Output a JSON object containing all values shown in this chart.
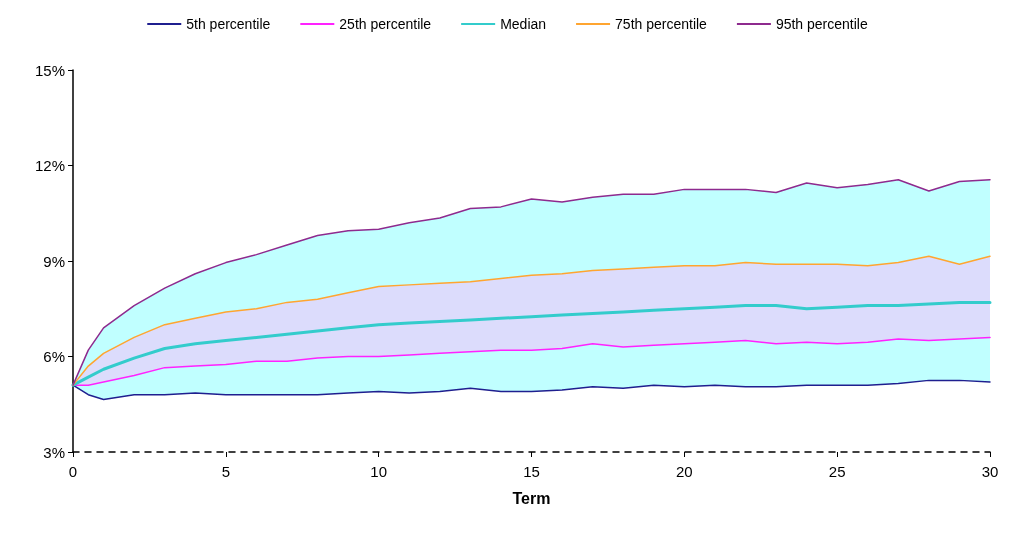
{
  "chart_data": {
    "type": "line",
    "xlabel": "Term",
    "x": [
      0,
      0.5,
      1,
      2,
      3,
      4,
      5,
      6,
      7,
      8,
      9,
      10,
      11,
      12,
      13,
      14,
      15,
      16,
      17,
      18,
      19,
      20,
      21,
      22,
      23,
      24,
      25,
      26,
      27,
      28,
      29,
      30
    ],
    "xlim": [
      0,
      30
    ],
    "xticks": [
      0,
      5,
      10,
      15,
      20,
      25,
      30
    ],
    "ylim": [
      3,
      15
    ],
    "yticks": [
      {
        "value": 3,
        "label": "3%"
      },
      {
        "value": 6,
        "label": "6%"
      },
      {
        "value": 9,
        "label": "9%"
      },
      {
        "value": 12,
        "label": "12%"
      },
      {
        "value": 15,
        "label": "15%"
      }
    ],
    "grid": false,
    "legend": "top",
    "marker": "none",
    "line_style": "solid",
    "series": [
      {
        "name": "5th percentile",
        "color": "#1f1f8f",
        "values": [
          5.1,
          4.8,
          4.65,
          4.8,
          4.8,
          4.85,
          4.8,
          4.8,
          4.8,
          4.8,
          4.85,
          4.9,
          4.85,
          4.9,
          5.0,
          4.9,
          4.9,
          4.95,
          5.05,
          5.0,
          5.1,
          5.05,
          5.1,
          5.05,
          5.05,
          5.1,
          5.1,
          5.1,
          5.15,
          5.25,
          5.25,
          5.2
        ],
        "lower": [
          5.1,
          4.8,
          4.65,
          4.8,
          4.8,
          4.85,
          4.8,
          4.8,
          4.8,
          4.8,
          4.85,
          4.9,
          4.85,
          4.9,
          5.0,
          4.9,
          4.9,
          4.95,
          5.05,
          5.0,
          5.1,
          5.05,
          5.1,
          5.05,
          5.05,
          5.1,
          5.1,
          5.1,
          5.15,
          5.25,
          5.25,
          5.2
        ],
        "upper": [
          5.1,
          6.2,
          6.9,
          7.6,
          8.15,
          8.6,
          8.95,
          9.2,
          9.5,
          9.8,
          9.95,
          10.0,
          10.2,
          10.35,
          10.65,
          10.7,
          10.95,
          10.85,
          11.0,
          11.1,
          11.1,
          11.25,
          11.25,
          11.25,
          11.15,
          11.45,
          11.3,
          11.4,
          11.55,
          11.2,
          11.5,
          11.55
        ]
      },
      {
        "name": "25th percentile",
        "color": "#ff22ff",
        "values": [
          5.1,
          5.1,
          5.2,
          5.4,
          5.65,
          5.7,
          5.75,
          5.85,
          5.85,
          5.95,
          6.0,
          6.0,
          6.05,
          6.1,
          6.15,
          6.2,
          6.2,
          6.25,
          6.4,
          6.3,
          6.35,
          6.4,
          6.45,
          6.5,
          6.4,
          6.45,
          6.4,
          6.45,
          6.55,
          6.5,
          6.55,
          6.6
        ],
        "lower": [
          5.1,
          5.1,
          5.2,
          5.4,
          5.65,
          5.7,
          5.75,
          5.85,
          5.85,
          5.95,
          6.0,
          6.0,
          6.05,
          6.1,
          6.15,
          6.2,
          6.2,
          6.25,
          6.4,
          6.3,
          6.35,
          6.4,
          6.45,
          6.5,
          6.4,
          6.45,
          6.4,
          6.45,
          6.55,
          6.5,
          6.55,
          6.6
        ],
        "upper": [
          5.1,
          5.7,
          6.1,
          6.6,
          7.0,
          7.2,
          7.4,
          7.5,
          7.7,
          7.8,
          8.0,
          8.2,
          8.25,
          8.3,
          8.35,
          8.45,
          8.55,
          8.6,
          8.7,
          8.75,
          8.8,
          8.85,
          8.85,
          8.95,
          8.9,
          8.9,
          8.9,
          8.85,
          8.95,
          9.15,
          8.9,
          9.15
        ]
      },
      {
        "name": "Median",
        "color": "#33cccc",
        "values": [
          5.1,
          5.35,
          5.6,
          5.95,
          6.25,
          6.4,
          6.5,
          6.6,
          6.7,
          6.8,
          6.9,
          7.0,
          7.05,
          7.1,
          7.15,
          7.2,
          7.25,
          7.3,
          7.35,
          7.4,
          7.45,
          7.5,
          7.55,
          7.6,
          7.6,
          7.5,
          7.55,
          7.6,
          7.6,
          7.65,
          7.7,
          7.7
        ]
      },
      {
        "name": "75th percentile",
        "color": "#ffa530",
        "values": [
          5.1,
          5.7,
          6.1,
          6.6,
          7.0,
          7.2,
          7.4,
          7.5,
          7.7,
          7.8,
          8.0,
          8.2,
          8.25,
          8.3,
          8.35,
          8.45,
          8.55,
          8.6,
          8.7,
          8.75,
          8.8,
          8.85,
          8.85,
          8.95,
          8.9,
          8.9,
          8.9,
          8.85,
          8.95,
          9.15,
          8.9,
          9.15
        ]
      },
      {
        "name": "95th percentile",
        "color": "#8e2a8e",
        "values": [
          5.1,
          6.2,
          6.9,
          7.6,
          8.15,
          8.6,
          8.95,
          9.2,
          9.5,
          9.8,
          9.95,
          10.0,
          10.2,
          10.35,
          10.65,
          10.7,
          10.95,
          10.85,
          11.0,
          11.1,
          11.1,
          11.25,
          11.25,
          11.25,
          11.15,
          11.45,
          11.3,
          11.4,
          11.55,
          11.2,
          11.5,
          11.55
        ]
      }
    ]
  }
}
